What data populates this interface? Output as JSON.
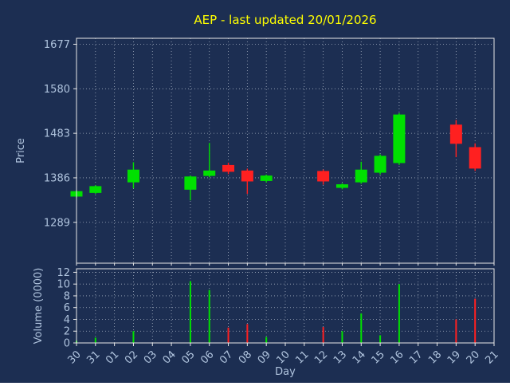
{
  "title": {
    "text": "AEP - last updated 20/01/2026"
  },
  "colors": {
    "background": "#1c2e52",
    "grid": "#cfd8e3",
    "axis_frame": "#e8e8e8",
    "tick_label": "#b0c4de",
    "title": "#ffff00",
    "up": "#00e000",
    "down": "#ff2020"
  },
  "price_axis": {
    "label": "Price",
    "ticks": [
      1289,
      1386,
      1483,
      1580,
      1677
    ],
    "range": [
      1200,
      1690
    ]
  },
  "volume_axis": {
    "label": "Volume (0000)",
    "ticks": [
      0,
      2,
      4,
      6,
      8,
      10,
      12
    ],
    "range": [
      0,
      12.6
    ]
  },
  "x_axis": {
    "label": "Day",
    "ticks": [
      "30",
      "31",
      "01",
      "02",
      "03",
      "04",
      "05",
      "06",
      "07",
      "08",
      "09",
      "10",
      "11",
      "12",
      "13",
      "14",
      "15",
      "16",
      "17",
      "18",
      "19",
      "20",
      "21"
    ]
  },
  "chart_data": {
    "type": "candlestick",
    "title": "AEP - last updated 20/01/2026",
    "xlabel": "Day",
    "ylabel_price": "Price",
    "ylabel_volume": "Volume (0000)",
    "grid": true,
    "candles": [
      {
        "day": "30",
        "open": 1346,
        "high": 1358,
        "low": 1343,
        "close": 1356,
        "volume": 0.4
      },
      {
        "day": "31",
        "open": 1354,
        "high": 1370,
        "low": 1351,
        "close": 1367,
        "volume": 0.9
      },
      {
        "day": "02",
        "open": 1377,
        "high": 1420,
        "low": 1363,
        "close": 1403,
        "volume": 2.0
      },
      {
        "day": "05",
        "open": 1361,
        "high": 1391,
        "low": 1337,
        "close": 1388,
        "volume": 10.5
      },
      {
        "day": "06",
        "open": 1391,
        "high": 1462,
        "low": 1387,
        "close": 1401,
        "volume": 9.0
      },
      {
        "day": "07",
        "open": 1413,
        "high": 1419,
        "low": 1394,
        "close": 1400,
        "volume": 2.6
      },
      {
        "day": "08",
        "open": 1401,
        "high": 1406,
        "low": 1351,
        "close": 1379,
        "volume": 3.2
      },
      {
        "day": "09",
        "open": 1380,
        "high": 1393,
        "low": 1376,
        "close": 1390,
        "volume": 1.0
      },
      {
        "day": "12",
        "open": 1400,
        "high": 1404,
        "low": 1371,
        "close": 1379,
        "volume": 2.7
      },
      {
        "day": "13",
        "open": 1365,
        "high": 1374,
        "low": 1361,
        "close": 1371,
        "volume": 2.0
      },
      {
        "day": "14",
        "open": 1377,
        "high": 1421,
        "low": 1373,
        "close": 1403,
        "volume": 5.0
      },
      {
        "day": "15",
        "open": 1398,
        "high": 1437,
        "low": 1393,
        "close": 1433,
        "volume": 1.3
      },
      {
        "day": "16",
        "open": 1419,
        "high": 1527,
        "low": 1414,
        "close": 1523,
        "volume": 10.0
      },
      {
        "day": "19",
        "open": 1501,
        "high": 1512,
        "low": 1431,
        "close": 1461,
        "volume": 4.0
      },
      {
        "day": "20",
        "open": 1452,
        "high": 1461,
        "low": 1401,
        "close": 1407,
        "volume": 7.5
      }
    ]
  }
}
